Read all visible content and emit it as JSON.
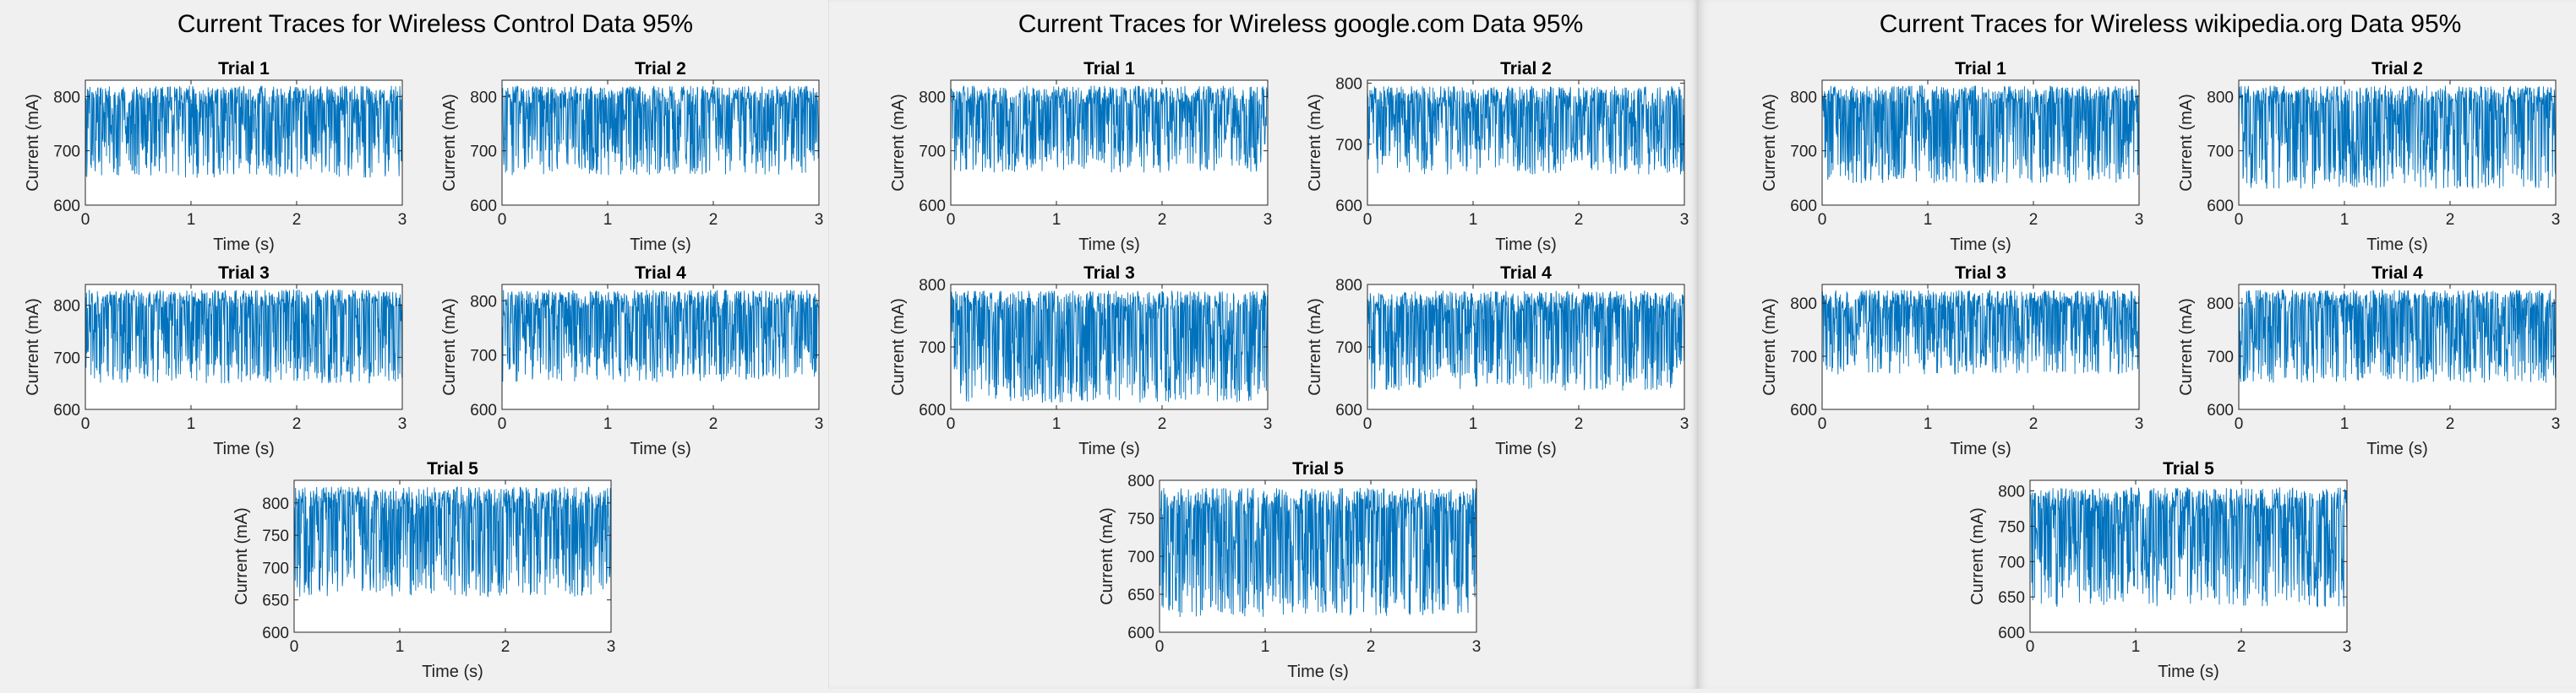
{
  "figures": [
    {
      "title": "Current Traces for Wireless Control Data 95%"
    },
    {
      "title": "Current Traces for Wireless google.com Data 95%"
    },
    {
      "title": "Current Traces for Wireless wikipedia.org Data 95%"
    }
  ],
  "chart_data": [
    {
      "type": "line",
      "figure": 0,
      "title": "Trial 1",
      "xlabel": "Time (s)",
      "ylabel": "Current (mA)",
      "xlim": [
        0,
        3
      ],
      "ylim": [
        600,
        830
      ],
      "xticks": [
        "0",
        "1",
        "2",
        "3"
      ],
      "yticks": [
        "600",
        "700",
        "800"
      ],
      "color": "#0072BD",
      "lo": 650,
      "hi": 825,
      "seed": 11
    },
    {
      "type": "line",
      "figure": 0,
      "title": "Trial 2",
      "xlabel": "Time (s)",
      "ylabel": "Current (mA)",
      "xlim": [
        0,
        3
      ],
      "ylim": [
        600,
        830
      ],
      "xticks": [
        "0",
        "1",
        "2",
        "3"
      ],
      "yticks": [
        "600",
        "700",
        "800"
      ],
      "color": "#0072BD",
      "lo": 655,
      "hi": 825,
      "seed": 12
    },
    {
      "type": "line",
      "figure": 0,
      "title": "Trial 3",
      "xlabel": "Time (s)",
      "ylabel": "Current (mA)",
      "xlim": [
        0,
        3
      ],
      "ylim": [
        600,
        840
      ],
      "xticks": [
        "0",
        "1",
        "2",
        "3"
      ],
      "yticks": [
        "600",
        "700",
        "800"
      ],
      "color": "#0072BD",
      "lo": 650,
      "hi": 835,
      "seed": 13
    },
    {
      "type": "line",
      "figure": 0,
      "title": "Trial 4",
      "xlabel": "Time (s)",
      "ylabel": "Current (mA)",
      "xlim": [
        0,
        3
      ],
      "ylim": [
        600,
        830
      ],
      "xticks": [
        "0",
        "1",
        "2",
        "3"
      ],
      "yticks": [
        "600",
        "700",
        "800"
      ],
      "color": "#0072BD",
      "lo": 650,
      "hi": 825,
      "seed": 14
    },
    {
      "type": "line",
      "figure": 0,
      "title": "Trial 5",
      "xlabel": "Time (s)",
      "ylabel": "Current (mA)",
      "xlim": [
        0,
        3
      ],
      "ylim": [
        600,
        835
      ],
      "xticks": [
        "0",
        "1",
        "2",
        "3"
      ],
      "yticks": [
        "600",
        "650",
        "700",
        "750",
        "800"
      ],
      "color": "#0072BD",
      "lo": 655,
      "hi": 830,
      "seed": 15
    },
    {
      "type": "line",
      "figure": 1,
      "title": "Trial 1",
      "xlabel": "Time (s)",
      "ylabel": "Current (mA)",
      "xlim": [
        0,
        3
      ],
      "ylim": [
        600,
        830
      ],
      "xticks": [
        "0",
        "1",
        "2",
        "3"
      ],
      "yticks": [
        "600",
        "700",
        "800"
      ],
      "color": "#0072BD",
      "lo": 660,
      "hi": 825,
      "seed": 21
    },
    {
      "type": "line",
      "figure": 1,
      "title": "Trial 2",
      "xlabel": "Time (s)",
      "ylabel": "Current (mA)",
      "xlim": [
        0,
        3
      ],
      "ylim": [
        600,
        805
      ],
      "xticks": [
        "0",
        "1",
        "2",
        "3"
      ],
      "yticks": [
        "600",
        "700",
        "800"
      ],
      "color": "#0072BD",
      "lo": 650,
      "hi": 800,
      "seed": 22
    },
    {
      "type": "line",
      "figure": 1,
      "title": "Trial 3",
      "xlabel": "Time (s)",
      "ylabel": "Current (mA)",
      "xlim": [
        0,
        3
      ],
      "ylim": [
        600,
        800
      ],
      "xticks": [
        "0",
        "1",
        "2",
        "3"
      ],
      "yticks": [
        "600",
        "700",
        "800"
      ],
      "color": "#0072BD",
      "lo": 610,
      "hi": 795,
      "seed": 23
    },
    {
      "type": "line",
      "figure": 1,
      "title": "Trial 4",
      "xlabel": "Time (s)",
      "ylabel": "Current (mA)",
      "xlim": [
        0,
        3
      ],
      "ylim": [
        600,
        800
      ],
      "xticks": [
        "0",
        "1",
        "2",
        "3"
      ],
      "yticks": [
        "600",
        "700",
        "800"
      ],
      "color": "#0072BD",
      "lo": 630,
      "hi": 795,
      "seed": 24
    },
    {
      "type": "line",
      "figure": 1,
      "title": "Trial 5",
      "xlabel": "Time (s)",
      "ylabel": "Current (mA)",
      "xlim": [
        0,
        3
      ],
      "ylim": [
        600,
        800
      ],
      "xticks": [
        "0",
        "1",
        "2",
        "3"
      ],
      "yticks": [
        "600",
        "650",
        "700",
        "750",
        "800"
      ],
      "color": "#0072BD",
      "lo": 620,
      "hi": 795,
      "seed": 25
    },
    {
      "type": "line",
      "figure": 2,
      "title": "Trial 1",
      "xlabel": "Time (s)",
      "ylabel": "Current (mA)",
      "xlim": [
        0,
        3
      ],
      "ylim": [
        600,
        830
      ],
      "xticks": [
        "0",
        "1",
        "2",
        "3"
      ],
      "yticks": [
        "600",
        "700",
        "800"
      ],
      "color": "#0072BD",
      "lo": 640,
      "hi": 825,
      "seed": 31
    },
    {
      "type": "line",
      "figure": 2,
      "title": "Trial 2",
      "xlabel": "Time (s)",
      "ylabel": "Current (mA)",
      "xlim": [
        0,
        3
      ],
      "ylim": [
        600,
        830
      ],
      "xticks": [
        "0",
        "1",
        "2",
        "3"
      ],
      "yticks": [
        "600",
        "700",
        "800"
      ],
      "color": "#0072BD",
      "lo": 630,
      "hi": 825,
      "seed": 32
    },
    {
      "type": "line",
      "figure": 2,
      "title": "Trial 3",
      "xlabel": "Time (s)",
      "ylabel": "Current (mA)",
      "xlim": [
        0,
        3
      ],
      "ylim": [
        600,
        835
      ],
      "xticks": [
        "0",
        "1",
        "2",
        "3"
      ],
      "yticks": [
        "600",
        "700",
        "800"
      ],
      "color": "#0072BD",
      "lo": 665,
      "hi": 830,
      "seed": 33
    },
    {
      "type": "line",
      "figure": 2,
      "title": "Trial 4",
      "xlabel": "Time (s)",
      "ylabel": "Current (mA)",
      "xlim": [
        0,
        3
      ],
      "ylim": [
        600,
        835
      ],
      "xticks": [
        "0",
        "1",
        "2",
        "3"
      ],
      "yticks": [
        "600",
        "700",
        "800"
      ],
      "color": "#0072BD",
      "lo": 650,
      "hi": 830,
      "seed": 34
    },
    {
      "type": "line",
      "figure": 2,
      "title": "Trial 5",
      "xlabel": "Time (s)",
      "ylabel": "Current (mA)",
      "xlim": [
        0,
        3
      ],
      "ylim": [
        600,
        815
      ],
      "xticks": [
        "0",
        "1",
        "2",
        "3"
      ],
      "yticks": [
        "600",
        "650",
        "700",
        "750",
        "800"
      ],
      "color": "#0072BD",
      "lo": 635,
      "hi": 810,
      "seed": 35
    }
  ]
}
